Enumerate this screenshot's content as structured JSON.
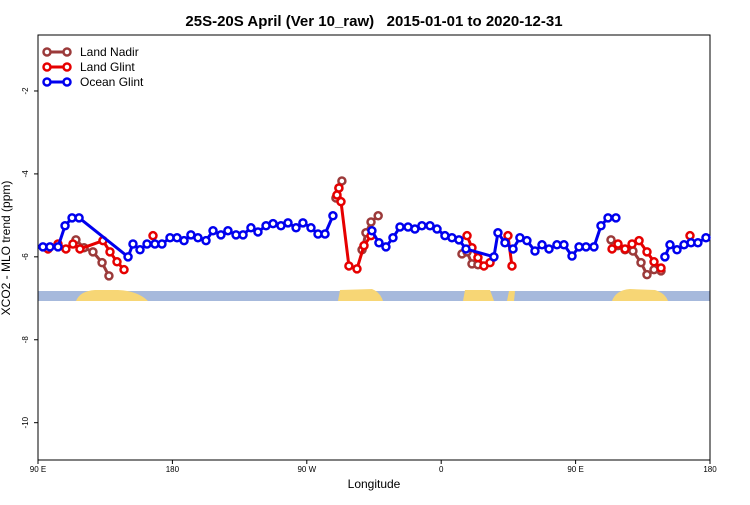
{
  "chart_data": {
    "type": "line",
    "title": "25S-20S April (Ver 10_raw)   2015-01-01 to 2020-12-31",
    "x_label": "Longitude",
    "y_label": "XCO2 - MLO trend (ppm)",
    "xlim": [
      90,
      540
    ],
    "ylim": [
      -10.9,
      -0.65
    ],
    "xticks": [
      {
        "value": 90,
        "label": "90 E"
      },
      180,
      {
        "value": 270,
        "label": "90 W"
      },
      {
        "value": 360,
        "label": "0"
      },
      {
        "value": 450,
        "label": "90 E"
      },
      {
        "value": 540,
        "label": "180"
      }
    ],
    "yticks": [
      -2,
      -4,
      -6,
      -8,
      -10
    ],
    "legend": "top-left",
    "series": [
      {
        "name": "Land Nadir",
        "color": "#9b3a3a",
        "x": [
          115.4,
          120.8,
          126.8,
          132.9,
          137.5,
          null,
          289.5,
          291.5,
          293.5,
          null,
          307.0,
          309.6,
          313.0,
          317.8,
          null,
          373.9,
          377.3,
          380.6,
          384.6,
          null,
          473.7,
          478.4,
          483.1,
          488.4,
          493.8,
          497.8,
          502.5,
          507.2
        ],
        "values": [
          -5.59,
          -5.78,
          -5.88,
          -6.14,
          -6.46,
          null,
          -4.58,
          -4.34,
          -4.17,
          null,
          -5.83,
          -5.42,
          -5.16,
          -5.01,
          null,
          -5.93,
          -5.88,
          -6.17,
          -6.19,
          null,
          -5.59,
          -5.73,
          -5.83,
          -5.86,
          -6.14,
          -6.43,
          -6.31,
          -6.34
        ]
      },
      {
        "name": "Land Glint",
        "color": "#e60000",
        "x": [
          96.7,
          103.4,
          108.7,
          113.4,
          118.1,
          133.5,
          138.2,
          142.9,
          147.6,
          null,
          167.0,
          null,
          290.2,
          291.5,
          292.9,
          298.2,
          303.6,
          308.3,
          313.0,
          null,
          377.3,
          380.6,
          384.6,
          388.6,
          392.7,
          null,
          404.7,
          407.4,
          null,
          474.4,
          478.4,
          483.1,
          487.8,
          492.5,
          497.8,
          502.5,
          507.2,
          null,
          526.6
        ],
        "values": [
          -5.81,
          -5.69,
          -5.81,
          -5.69,
          -5.81,
          -5.61,
          -5.88,
          -6.12,
          -6.31,
          null,
          -5.49,
          null,
          -4.51,
          -4.34,
          -4.67,
          -6.22,
          -6.29,
          -5.73,
          -5.49,
          null,
          -5.49,
          -5.78,
          -6.02,
          -6.22,
          -6.14,
          null,
          -5.49,
          -6.22,
          null,
          -5.81,
          -5.69,
          -5.81,
          -5.69,
          -5.61,
          -5.88,
          -6.12,
          -6.27,
          null,
          -5.49
        ]
      },
      {
        "name": "Ocean Glint",
        "color": "#0000ee",
        "x": [
          93.3,
          98.0,
          103.4,
          108.1,
          112.8,
          117.5,
          150.3,
          153.6,
          158.3,
          163.0,
          168.3,
          173.0,
          178.4,
          183.1,
          187.8,
          192.4,
          197.1,
          202.5,
          207.2,
          212.5,
          217.2,
          222.6,
          227.3,
          232.6,
          237.3,
          242.7,
          247.4,
          252.7,
          257.4,
          262.8,
          267.4,
          272.8,
          277.5,
          282.2,
          287.5,
          null,
          313.6,
          318.3,
          323.0,
          327.7,
          332.4,
          337.8,
          342.4,
          347.1,
          352.5,
          357.2,
          362.5,
          367.2,
          371.9,
          376.6,
          395.3,
          398.0,
          402.7,
          408.1,
          412.7,
          417.4,
          422.8,
          427.5,
          432.2,
          437.5,
          442.2,
          447.6,
          452.3,
          457.0,
          462.3,
          467.0,
          471.7,
          477.0,
          null,
          509.8,
          513.2,
          517.9,
          522.6,
          527.3,
          531.9,
          537.3
        ],
        "values": [
          -5.76,
          -5.76,
          -5.76,
          -5.25,
          -5.06,
          -5.06,
          -6.0,
          -5.69,
          -5.83,
          -5.69,
          -5.69,
          -5.69,
          -5.54,
          -5.54,
          -5.61,
          -5.47,
          -5.54,
          -5.61,
          -5.37,
          -5.47,
          -5.37,
          -5.47,
          -5.47,
          -5.3,
          -5.4,
          -5.25,
          -5.2,
          -5.25,
          -5.18,
          -5.3,
          -5.18,
          -5.3,
          -5.45,
          -5.45,
          -5.01,
          null,
          -5.37,
          -5.66,
          -5.76,
          -5.54,
          -5.28,
          -5.28,
          -5.33,
          -5.25,
          -5.25,
          -5.33,
          -5.49,
          -5.54,
          -5.59,
          -5.81,
          -6.0,
          -5.42,
          -5.66,
          -5.81,
          -5.54,
          -5.61,
          -5.86,
          -5.71,
          -5.81,
          -5.71,
          -5.71,
          -5.98,
          -5.76,
          -5.76,
          -5.76,
          -5.25,
          -5.06,
          -5.06,
          null,
          -6.0,
          -5.71,
          -5.83,
          -5.71,
          -5.66,
          -5.66,
          -5.54
        ]
      }
    ]
  }
}
